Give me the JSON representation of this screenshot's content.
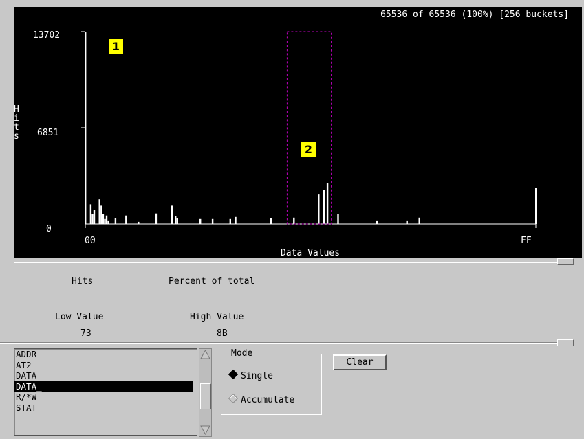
{
  "chart_data": {
    "type": "bar",
    "title": "65536 of 65536 (100%) [256 buckets]",
    "ylabel": "Hits",
    "xlabel": "Data Values",
    "x_range": [
      "00",
      "FF"
    ],
    "ylim": [
      0,
      13702
    ],
    "y_ticks": [
      "13702",
      "6851",
      "0"
    ],
    "y_tick_values": [
      13702,
      6851,
      0
    ],
    "grid": false,
    "series": [
      {
        "values": [
          13702,
          0,
          0,
          1400,
          700,
          1000,
          0,
          0,
          1750,
          1300,
          700,
          350,
          600,
          250,
          0,
          0,
          0,
          400,
          0,
          0,
          0,
          0,
          0,
          600,
          0,
          0,
          0,
          0,
          0,
          0,
          150,
          0,
          0,
          0,
          0,
          0,
          0,
          0,
          0,
          0,
          750,
          0,
          0,
          0,
          0,
          0,
          0,
          0,
          0,
          1300,
          0,
          550,
          400,
          0,
          0,
          0,
          0,
          0,
          0,
          0,
          0,
          0,
          0,
          0,
          0,
          350,
          0,
          0,
          0,
          0,
          0,
          0,
          350,
          0,
          0,
          0,
          0,
          0,
          0,
          0,
          0,
          0,
          350,
          0,
          0,
          500,
          0,
          0,
          0,
          0,
          0,
          0,
          0,
          0,
          0,
          0,
          0,
          0,
          0,
          0,
          0,
          0,
          0,
          0,
          0,
          400,
          0,
          0,
          0,
          0,
          0,
          0,
          0,
          0,
          0,
          0,
          0,
          0,
          450,
          0,
          0,
          0,
          0,
          0,
          0,
          0,
          0,
          0,
          0,
          0,
          0,
          0,
          2100,
          0,
          0,
          2400,
          0,
          2900,
          0,
          0,
          0,
          0,
          0,
          700,
          0,
          0,
          0,
          0,
          0,
          0,
          0,
          0,
          0,
          0,
          0,
          0,
          0,
          0,
          0,
          0,
          0,
          0,
          0,
          0,
          0,
          250,
          0,
          0,
          0,
          0,
          0,
          0,
          0,
          0,
          0,
          0,
          0,
          0,
          0,
          0,
          0,
          0,
          250,
          0,
          0,
          0,
          0,
          0,
          0,
          450,
          0,
          0,
          0,
          0,
          0,
          0,
          0,
          0,
          0,
          0,
          0,
          0,
          0,
          0,
          0,
          0,
          0,
          0,
          0,
          0,
          0,
          0,
          0,
          0,
          0,
          0,
          0,
          0,
          0,
          0,
          0,
          0,
          0,
          0,
          0,
          0,
          0,
          0,
          0,
          0,
          0,
          0,
          0,
          0,
          0,
          0,
          0,
          0,
          0,
          0,
          0,
          0,
          0,
          0,
          0,
          0,
          0,
          0,
          0,
          0,
          0,
          0,
          0,
          0,
          0,
          2550
        ]
      }
    ]
  },
  "markers": [
    "1",
    "2"
  ],
  "highlight_range": {
    "low": "73",
    "high": "8B"
  },
  "stats": {
    "hits_label": "Hits",
    "percent_label": "Percent of total",
    "low_label": "Low Value",
    "low_value": "73",
    "high_label": "High Value",
    "high_value": "8B"
  },
  "bus_list": {
    "items": [
      "ADDR",
      "AT2",
      "DATA",
      "DATA_",
      "R/*W",
      "STAT"
    ],
    "selected": "DATA_"
  },
  "mode": {
    "title": "Mode",
    "options": [
      "Single",
      "Accumulate"
    ],
    "selected": "Single"
  },
  "clear_label": "Clear",
  "colors": {
    "chart_bg": "#000000",
    "bar": "#ffffff",
    "marker_bg": "#ffff00",
    "range_box": "#c000c0",
    "panel_bg": "#c8c8c8"
  }
}
